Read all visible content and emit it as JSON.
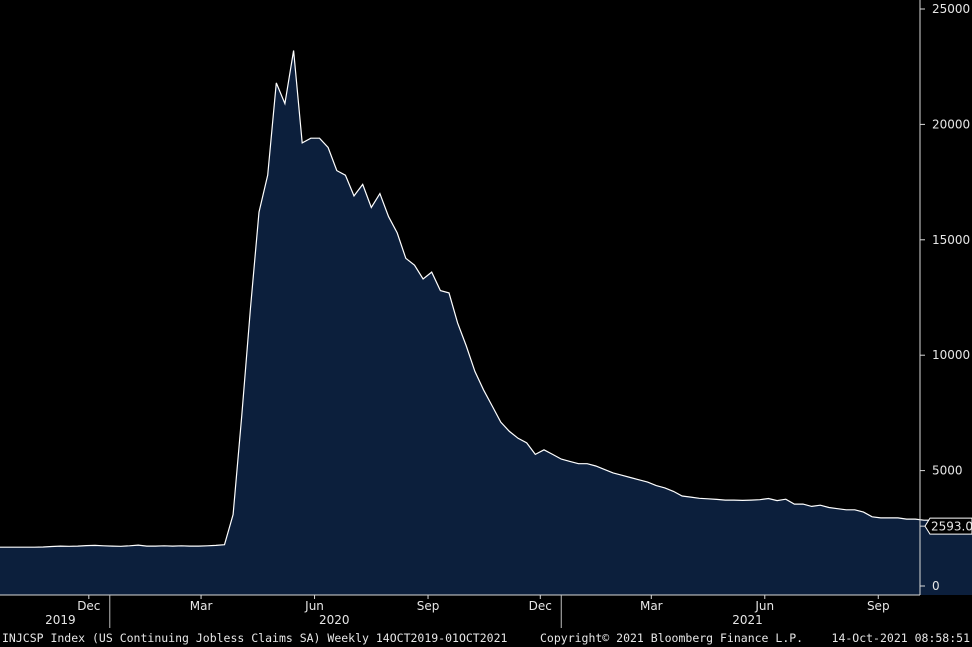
{
  "chart_data": {
    "type": "area",
    "ylim": [
      0,
      25000
    ],
    "yticks": [
      0,
      5000,
      10000,
      15000,
      20000,
      25000
    ],
    "ytick_labels": [
      "0",
      "5000",
      "10000",
      "15000",
      "20000",
      "25000"
    ],
    "x_start": "2019-10-04",
    "interval_days": 7,
    "x_end": "2021-10-01",
    "month_ticks": [
      {
        "label": "Dec",
        "date": "2019-12-15"
      },
      {
        "label": "Mar",
        "date": "2020-03-15"
      },
      {
        "label": "Jun",
        "date": "2020-06-15"
      },
      {
        "label": "Sep",
        "date": "2020-09-15"
      },
      {
        "label": "Dec",
        "date": "2020-12-15"
      },
      {
        "label": "Mar",
        "date": "2021-03-15"
      },
      {
        "label": "Jun",
        "date": "2021-06-15"
      },
      {
        "label": "Sep",
        "date": "2021-09-15"
      }
    ],
    "year_labels": [
      {
        "label": "2019",
        "date": "2019-11-22"
      },
      {
        "label": "2020",
        "date": "2020-07-01"
      },
      {
        "label": "2021",
        "date": "2021-06-01"
      }
    ],
    "year_dividers": [
      "2020-01-01",
      "2021-01-01"
    ],
    "values": [
      1680,
      1680,
      1680,
      1680,
      1680,
      1690,
      1710,
      1730,
      1720,
      1730,
      1750,
      1760,
      1740,
      1730,
      1720,
      1740,
      1770,
      1730,
      1730,
      1740,
      1730,
      1740,
      1730,
      1730,
      1740,
      1760,
      1790,
      3100,
      7400,
      12000,
      16200,
      17800,
      21800,
      20900,
      23200,
      19200,
      19400,
      19400,
      19000,
      18000,
      17800,
      16900,
      17400,
      16400,
      17000,
      16000,
      15300,
      14200,
      13900,
      13300,
      13600,
      12800,
      12700,
      11400,
      10400,
      9300,
      8500,
      7800,
      7100,
      6700,
      6400,
      6200,
      5700,
      5900,
      5700,
      5500,
      5400,
      5300,
      5300,
      5200,
      5050,
      4900,
      4800,
      4700,
      4600,
      4500,
      4350,
      4250,
      4100,
      3900,
      3850,
      3800,
      3780,
      3750,
      3720,
      3720,
      3710,
      3720,
      3740,
      3790,
      3700,
      3760,
      3550,
      3550,
      3450,
      3500,
      3400,
      3350,
      3300,
      3300,
      3200,
      3000,
      2950,
      2950,
      2950,
      2900,
      2900,
      2850,
      2850,
      2850,
      2800,
      2750,
      2700,
      2593
    ],
    "last_value_label": "2593.0",
    "colors": {
      "fill": "#0c1f3c",
      "line": "#ffffff",
      "background": "#000000"
    }
  },
  "footer": {
    "left": "INJCSP Index (US Continuing Jobless Claims SA)  Weekly 14OCT2019-01OCT2021",
    "center": "Copyright© 2021 Bloomberg Finance L.P.",
    "right": "14-Oct-2021 08:58:51"
  }
}
